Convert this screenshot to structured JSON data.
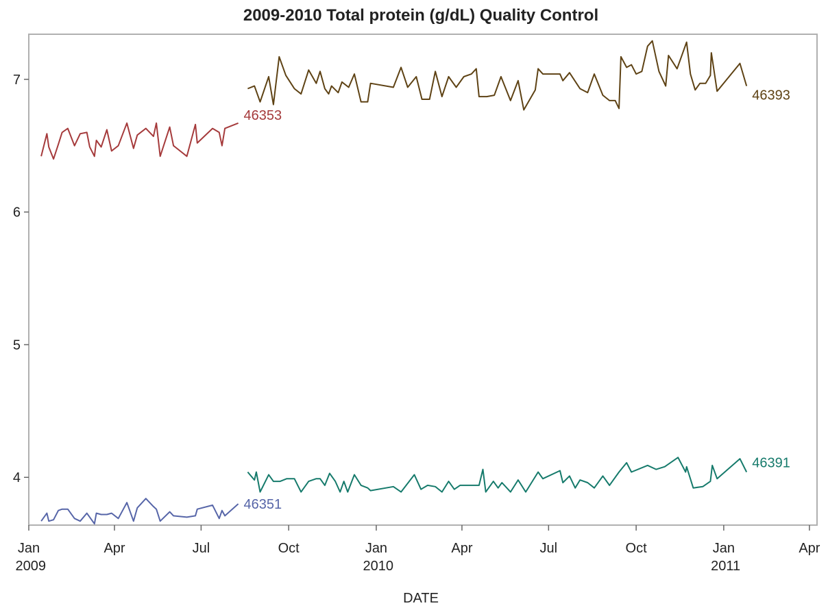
{
  "chart_data": {
    "type": "line",
    "title": "2009-2010 Total protein (g/dL) Quality Control",
    "xlabel": "DATE",
    "xlim": [
      "2009-01-01",
      "2011-04-09"
    ],
    "xticks": [
      {
        "value": "2009-01",
        "label": "Jan 2009"
      },
      {
        "value": "2009-04",
        "label": "Apr"
      },
      {
        "value": "2009-07",
        "label": "Jul"
      },
      {
        "value": "2009-10",
        "label": "Oct"
      },
      {
        "value": "2010-01",
        "label": "Jan 2010"
      },
      {
        "value": "2010-04",
        "label": "Apr"
      },
      {
        "value": "2010-07",
        "label": "Jul"
      },
      {
        "value": "2010-10",
        "label": "Oct"
      },
      {
        "value": "2011-01",
        "label": "Jan 2011"
      },
      {
        "value": "2011-04",
        "label": "Apr"
      }
    ],
    "ylim": [
      3.64,
      7.34
    ],
    "yticks": [
      4,
      5,
      6,
      7
    ],
    "series": [
      {
        "name": "46353",
        "color": "#a53a3b",
        "x": [
          "2009-01-14",
          "2009-01-20",
          "2009-01-22",
          "2009-01-27",
          "2009-02-01",
          "2009-02-05",
          "2009-02-11",
          "2009-02-18",
          "2009-02-24",
          "2009-03-03",
          "2009-03-06",
          "2009-03-11",
          "2009-03-13",
          "2009-03-18",
          "2009-03-24",
          "2009-03-29",
          "2009-04-05",
          "2009-04-14",
          "2009-04-21",
          "2009-04-25",
          "2009-05-04",
          "2009-05-12",
          "2009-05-15",
          "2009-05-19",
          "2009-05-29",
          "2009-06-02",
          "2009-06-16",
          "2009-06-25",
          "2009-06-27",
          "2009-07-13",
          "2009-07-20",
          "2009-07-23",
          "2009-07-26",
          "2009-08-09"
        ],
        "values": [
          6.42,
          6.59,
          6.49,
          6.4,
          6.51,
          6.6,
          6.63,
          6.5,
          6.59,
          6.6,
          6.49,
          6.42,
          6.54,
          6.49,
          6.62,
          6.46,
          6.5,
          6.67,
          6.48,
          6.58,
          6.63,
          6.57,
          6.67,
          6.42,
          6.64,
          6.5,
          6.42,
          6.66,
          6.52,
          6.63,
          6.6,
          6.5,
          6.63,
          6.67
        ]
      },
      {
        "name": "46351",
        "color": "#5665a8",
        "x": [
          "2009-01-14",
          "2009-01-20",
          "2009-01-22",
          "2009-01-27",
          "2009-02-01",
          "2009-02-05",
          "2009-02-11",
          "2009-02-18",
          "2009-02-24",
          "2009-03-03",
          "2009-03-06",
          "2009-03-11",
          "2009-03-13",
          "2009-03-18",
          "2009-03-24",
          "2009-03-29",
          "2009-04-05",
          "2009-04-14",
          "2009-04-21",
          "2009-04-25",
          "2009-05-04",
          "2009-05-12",
          "2009-05-15",
          "2009-05-19",
          "2009-05-29",
          "2009-06-02",
          "2009-06-16",
          "2009-06-25",
          "2009-06-27",
          "2009-07-13",
          "2009-07-20",
          "2009-07-23",
          "2009-07-26",
          "2009-08-09"
        ],
        "values": [
          3.67,
          3.73,
          3.67,
          3.68,
          3.75,
          3.76,
          3.76,
          3.69,
          3.67,
          3.73,
          3.7,
          3.65,
          3.73,
          3.72,
          3.72,
          3.73,
          3.69,
          3.81,
          3.67,
          3.77,
          3.84,
          3.78,
          3.76,
          3.67,
          3.74,
          3.71,
          3.7,
          3.71,
          3.76,
          3.79,
          3.69,
          3.75,
          3.71,
          3.8
        ]
      },
      {
        "name": "46393",
        "color": "#5e4214",
        "x": [
          "2009-08-19",
          "2009-08-26",
          "2009-09-01",
          "2009-09-10",
          "2009-09-15",
          "2009-09-21",
          "2009-09-28",
          "2009-10-07",
          "2009-10-14",
          "2009-10-22",
          "2009-10-30",
          "2009-11-03",
          "2009-11-08",
          "2009-11-12",
          "2009-11-15",
          "2009-11-22",
          "2009-11-26",
          "2009-12-03",
          "2009-12-09",
          "2009-12-16",
          "2009-12-23",
          "2009-12-26",
          "2010-01-19",
          "2010-01-27",
          "2010-02-03",
          "2010-02-12",
          "2010-02-18",
          "2010-02-26",
          "2010-03-04",
          "2010-03-11",
          "2010-03-18",
          "2010-03-26",
          "2010-04-03",
          "2010-04-11",
          "2010-04-16",
          "2010-04-19",
          "2010-04-27",
          "2010-05-05",
          "2010-05-12",
          "2010-05-22",
          "2010-05-30",
          "2010-06-05",
          "2010-06-17",
          "2010-06-20",
          "2010-06-25",
          "2010-07-13",
          "2010-07-16",
          "2010-07-23",
          "2010-08-03",
          "2010-08-11",
          "2010-08-18",
          "2010-08-27",
          "2010-09-03",
          "2010-09-09",
          "2010-09-13",
          "2010-09-15",
          "2010-09-21",
          "2010-09-26",
          "2010-10-01",
          "2010-10-07",
          "2010-10-13",
          "2010-10-18",
          "2010-10-25",
          "2010-11-01",
          "2010-11-04",
          "2010-11-13",
          "2010-11-23",
          "2010-11-27",
          "2010-12-02",
          "2010-12-07",
          "2010-12-13",
          "2010-12-18",
          "2010-12-19",
          "2010-12-25",
          "2011-01-18",
          "2011-01-25"
        ],
        "values": [
          6.93,
          6.95,
          6.83,
          7.02,
          6.81,
          7.17,
          7.03,
          6.93,
          6.89,
          7.07,
          6.97,
          7.06,
          6.93,
          6.89,
          6.95,
          6.9,
          6.98,
          6.94,
          7.04,
          6.83,
          6.83,
          6.97,
          6.94,
          7.09,
          6.94,
          7.02,
          6.85,
          6.85,
          7.06,
          6.87,
          7.02,
          6.94,
          7.02,
          7.04,
          7.08,
          6.87,
          6.87,
          6.88,
          7.02,
          6.84,
          6.99,
          6.77,
          6.92,
          7.08,
          7.04,
          7.04,
          6.99,
          7.05,
          6.93,
          6.9,
          7.04,
          6.88,
          6.84,
          6.84,
          6.78,
          7.17,
          7.09,
          7.11,
          7.04,
          7.06,
          7.25,
          7.29,
          7.06,
          6.95,
          7.18,
          7.08,
          7.28,
          7.04,
          6.92,
          6.97,
          6.97,
          7.03,
          7.2,
          6.91,
          7.12,
          6.95
        ]
      },
      {
        "name": "46391",
        "color": "#157a6b",
        "x": [
          "2009-08-19",
          "2009-08-26",
          "2009-08-28",
          "2009-09-01",
          "2009-09-10",
          "2009-09-15",
          "2009-09-22",
          "2009-09-29",
          "2009-10-07",
          "2009-10-14",
          "2009-10-22",
          "2009-10-30",
          "2009-11-03",
          "2009-11-08",
          "2009-11-13",
          "2009-11-19",
          "2009-11-24",
          "2009-11-28",
          "2009-12-02",
          "2009-12-09",
          "2009-12-16",
          "2009-12-23",
          "2009-12-26",
          "2010-01-19",
          "2010-01-27",
          "2010-02-10",
          "2010-02-17",
          "2010-02-24",
          "2010-03-04",
          "2010-03-11",
          "2010-03-18",
          "2010-03-24",
          "2010-03-30",
          "2010-04-11",
          "2010-04-19",
          "2010-04-23",
          "2010-04-26",
          "2010-05-04",
          "2010-05-09",
          "2010-05-13",
          "2010-05-22",
          "2010-05-30",
          "2010-06-07",
          "2010-06-20",
          "2010-06-25",
          "2010-07-13",
          "2010-07-16",
          "2010-07-23",
          "2010-07-29",
          "2010-08-03",
          "2010-08-11",
          "2010-08-18",
          "2010-08-27",
          "2010-09-03",
          "2010-09-13",
          "2010-09-21",
          "2010-09-26",
          "2010-10-13",
          "2010-10-22",
          "2010-10-31",
          "2010-11-14",
          "2010-11-22",
          "2010-11-23",
          "2010-11-30",
          "2010-12-10",
          "2010-12-18",
          "2010-12-20",
          "2010-12-25",
          "2011-01-18",
          "2011-01-25"
        ],
        "values": [
          4.04,
          3.98,
          4.04,
          3.89,
          4.02,
          3.97,
          3.97,
          3.99,
          3.99,
          3.89,
          3.97,
          3.99,
          3.99,
          3.94,
          4.03,
          3.97,
          3.89,
          3.97,
          3.89,
          4.02,
          3.94,
          3.92,
          3.9,
          3.93,
          3.89,
          4.02,
          3.91,
          3.94,
          3.93,
          3.89,
          3.97,
          3.91,
          3.94,
          3.94,
          3.94,
          4.06,
          3.89,
          3.97,
          3.92,
          3.96,
          3.89,
          3.98,
          3.89,
          4.04,
          3.99,
          4.05,
          3.96,
          4.01,
          3.92,
          3.98,
          3.96,
          3.92,
          4.01,
          3.94,
          4.04,
          4.11,
          4.04,
          4.09,
          4.06,
          4.08,
          4.15,
          4.04,
          4.08,
          3.92,
          3.93,
          3.97,
          4.09,
          3.99,
          4.14,
          4.04
        ]
      }
    ]
  }
}
